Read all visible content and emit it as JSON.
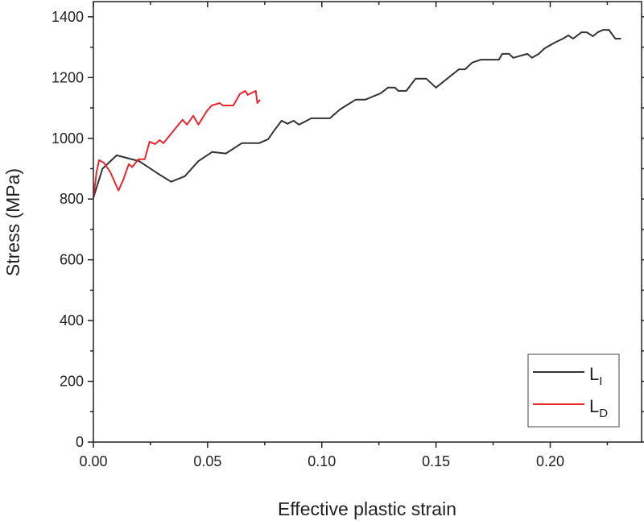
{
  "chart_data": {
    "type": "line",
    "title": "",
    "xlabel": "Effective plastic strain",
    "ylabel": "Stress (MPa)",
    "xlim": [
      0,
      0.24
    ],
    "ylim": [
      0,
      1450
    ],
    "xticks": [
      "0.00",
      "0.05",
      "0.10",
      "0.15",
      "0.20"
    ],
    "xtick_values": [
      0,
      0.05,
      0.1,
      0.15,
      0.2
    ],
    "yticks": [
      "0",
      "200",
      "400",
      "600",
      "800",
      "1000",
      "1200",
      "1400"
    ],
    "ytick_values": [
      0,
      200,
      400,
      600,
      800,
      1000,
      1200,
      1400
    ],
    "grid": false,
    "legend_position": "bottom-right",
    "series": [
      {
        "name": "L",
        "sub": "I",
        "color": "#333333",
        "x": [
          0,
          0.004,
          0.0102,
          0.02,
          0.028,
          0.034,
          0.04,
          0.046,
          0.052,
          0.058,
          0.065,
          0.0725,
          0.0765,
          0.079,
          0.0824,
          0.085,
          0.0877,
          0.09,
          0.0954,
          0.1035,
          0.108,
          0.1148,
          0.119,
          0.1257,
          0.129,
          0.132,
          0.1335,
          0.137,
          0.141,
          0.1458,
          0.15,
          0.16,
          0.1627,
          0.1658,
          0.1697,
          0.1775,
          0.179,
          0.182,
          0.1838,
          0.19,
          0.192,
          0.195,
          0.1975,
          0.202,
          0.2056,
          0.208,
          0.21,
          0.2137,
          0.216,
          0.2187,
          0.2208,
          0.2232,
          0.2257,
          0.2285,
          0.231
        ],
        "y": [
          804,
          900,
          944,
          925,
          885,
          857,
          875,
          925,
          955,
          950,
          984,
          984,
          997,
          1024,
          1058,
          1048,
          1058,
          1045,
          1066,
          1066,
          1095,
          1127,
          1127,
          1148,
          1167,
          1167,
          1156,
          1156,
          1196,
          1196,
          1167,
          1227,
          1227,
          1249,
          1259,
          1259,
          1278,
          1278,
          1265,
          1278,
          1265,
          1278,
          1296,
          1315,
          1328,
          1339,
          1328,
          1349,
          1349,
          1336,
          1349,
          1357,
          1357,
          1328,
          1328
        ]
      },
      {
        "name": "L",
        "sub": "D",
        "color": "#e8262b",
        "x": [
          0,
          0.0014,
          0.0025,
          0.0045,
          0.0074,
          0.011,
          0.013,
          0.0155,
          0.017,
          0.0197,
          0.0225,
          0.0246,
          0.027,
          0.029,
          0.0307,
          0.035,
          0.039,
          0.041,
          0.0437,
          0.046,
          0.0497,
          0.0518,
          0.0553,
          0.0567,
          0.0613,
          0.0641,
          0.0665,
          0.0676,
          0.0711,
          0.0718,
          0.0729
        ],
        "y": [
          804,
          889,
          928,
          920,
          889,
          828,
          862,
          915,
          905,
          931,
          931,
          989,
          981,
          994,
          984,
          1024,
          1061,
          1045,
          1074,
          1045,
          1090,
          1108,
          1116,
          1108,
          1108,
          1146,
          1156,
          1143,
          1156,
          1116,
          1127
        ]
      }
    ]
  }
}
